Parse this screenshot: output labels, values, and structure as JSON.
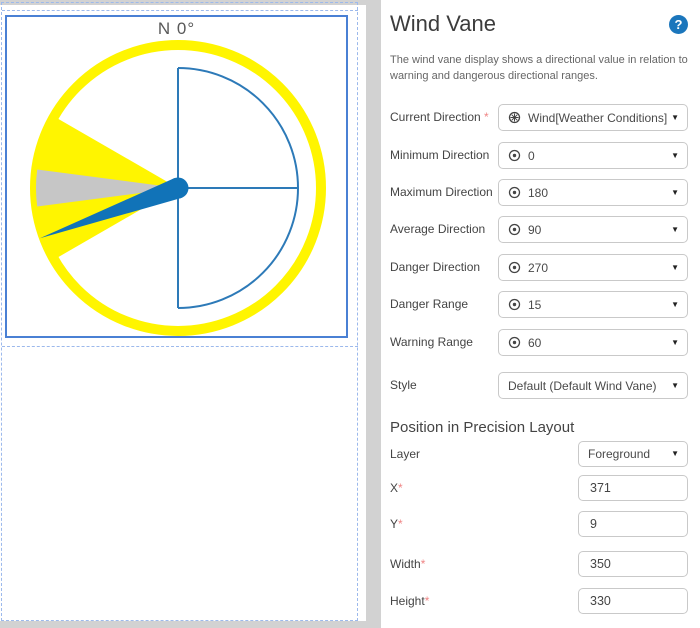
{
  "canvas": {
    "compass_label": "N 0°",
    "current_direction_deg": 250,
    "minimum_direction_deg": 0,
    "maximum_direction_deg": 180,
    "average_direction_deg": 90,
    "danger_direction_deg": 270,
    "danger_range_deg": 15,
    "warning_range_deg": 60,
    "colors": {
      "warning_yellow": "#FFF500",
      "danger_gray": "#C6C6C6",
      "needle_blue": "#1173B8",
      "guide_blue": "#2D7AB8",
      "selection_solid": "#4A80D4",
      "selection_dashed": "#9CB9EC"
    }
  },
  "panel": {
    "title": "Wind Vane",
    "help_icon": "help-icon",
    "description": [
      "The wind vane display shows a directional value in relation to",
      "warning and dangerous directional ranges."
    ],
    "rows": [
      {
        "label": "Current Direction",
        "req_mark": " *",
        "value": "Wind[Weather Conditions]:Win",
        "icon": "datapoint-icon"
      },
      {
        "label": "Minimum Direction",
        "req_mark": "",
        "value": "0",
        "icon": "target-icon"
      },
      {
        "label": "Maximum Direction",
        "req_mark": "",
        "value": "180",
        "icon": "target-icon"
      },
      {
        "label": "Average Direction",
        "req_mark": "",
        "value": "90",
        "icon": "target-icon"
      },
      {
        "label": "Danger Direction",
        "req_mark": "",
        "value": "270",
        "icon": "target-icon"
      },
      {
        "label": "Danger Range",
        "req_mark": "",
        "value": "15",
        "icon": "target-icon"
      },
      {
        "label": "Warning Range",
        "req_mark": "",
        "value": "60",
        "icon": "target-icon"
      },
      {
        "label": "Style",
        "req_mark": "",
        "value": "Default (Default Wind Vane)",
        "icon": null
      }
    ],
    "layout_section": {
      "heading": "Position in Precision Layout",
      "rows": [
        {
          "label": "Layer",
          "req_mark": "",
          "value": "Foreground",
          "type": "select"
        },
        {
          "label": "X",
          "req_mark": "*",
          "value": "371",
          "type": "input"
        },
        {
          "label": "Y",
          "req_mark": "*",
          "value": "9",
          "type": "input"
        },
        {
          "label": "Width",
          "req_mark": "*",
          "value": "350",
          "type": "input"
        },
        {
          "label": "Height",
          "req_mark": "*",
          "value": "330",
          "type": "input"
        }
      ]
    }
  }
}
